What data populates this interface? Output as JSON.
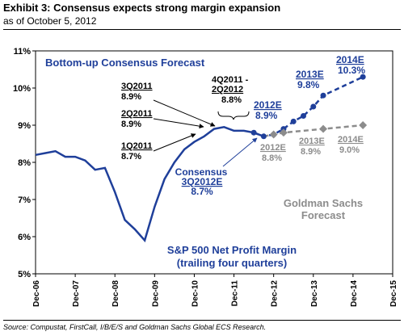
{
  "header": {
    "title": "Exhibit 3: Consensus expects strong margin expansion",
    "subtitle": "as of October 5, 2012"
  },
  "source": "Source: Compustat, FirstCall, I/B/E/S and Goldman Sachs Global ECS Research.",
  "chart_data": {
    "type": "line",
    "x_ticks": [
      "Dec-06",
      "Dec-07",
      "Dec-08",
      "Dec-09",
      "Dec-10",
      "Dec-11",
      "Dec-12",
      "Dec-13",
      "Dec-14",
      "Dec-15"
    ],
    "y_ticks": [
      "5%",
      "6%",
      "7%",
      "8%",
      "9%",
      "10%",
      "11%"
    ],
    "ylim": [
      5,
      11
    ],
    "grid": false,
    "colors": {
      "actual": "#1f3f9a",
      "consensus": "#1f3f9a",
      "gs": "#8c8c8c"
    },
    "series": [
      {
        "key": "actual",
        "style": "solid",
        "points": [
          [
            2006.75,
            8.2
          ],
          [
            2007.0,
            8.25
          ],
          [
            2007.25,
            8.3
          ],
          [
            2007.5,
            8.15
          ],
          [
            2007.75,
            8.15
          ],
          [
            2008.0,
            8.05
          ],
          [
            2008.25,
            7.8
          ],
          [
            2008.5,
            7.85
          ],
          [
            2008.75,
            7.2
          ],
          [
            2009.0,
            6.45
          ],
          [
            2009.25,
            6.2
          ],
          [
            2009.5,
            5.9
          ],
          [
            2009.75,
            6.8
          ],
          [
            2010.0,
            7.55
          ],
          [
            2010.25,
            8.0
          ],
          [
            2010.5,
            8.35
          ],
          [
            2010.75,
            8.55
          ],
          [
            2011.0,
            8.7
          ],
          [
            2011.25,
            8.9
          ],
          [
            2011.5,
            8.95
          ],
          [
            2011.75,
            8.85
          ],
          [
            2012.0,
            8.85
          ],
          [
            2012.25,
            8.8
          ],
          [
            2012.5,
            8.7
          ]
        ]
      },
      {
        "key": "consensus",
        "style": "dashed",
        "points": [
          [
            2012.25,
            8.8
          ],
          [
            2012.5,
            8.7
          ],
          [
            2012.75,
            8.75
          ],
          [
            2013.0,
            8.9
          ],
          [
            2013.25,
            9.1
          ],
          [
            2013.5,
            9.25
          ],
          [
            2013.75,
            9.5
          ],
          [
            2014.0,
            9.8
          ],
          [
            2015.0,
            10.3
          ]
        ]
      },
      {
        "key": "gs",
        "style": "dashed",
        "points": [
          [
            2012.5,
            8.7
          ],
          [
            2012.75,
            8.75
          ],
          [
            2013.0,
            8.8
          ],
          [
            2014.0,
            8.9
          ],
          [
            2015.0,
            9.0
          ]
        ]
      }
    ],
    "annotations": {
      "consensus_title": "Bottom-up Consensus Forecast",
      "q3_2011_label": "3Q2011",
      "q3_2011_value": "8.9%",
      "q2_2011_label": "2Q2011",
      "q2_2011_value": "8.9%",
      "q1_2011_label": "1Q2011",
      "q1_2011_value": "8.7%",
      "q4_2011_label1": "4Q2011 -",
      "q4_2011_label2": "2Q2012",
      "q4_2011_value": "8.8%",
      "cons_2012_label": "2012E",
      "cons_2012_value": "8.9%",
      "cons_2013_label": "2013E",
      "cons_2013_value": "9.8%",
      "cons_2014_label": "2014E",
      "cons_2014_value": "10.3%",
      "gs_2012_label": "2012E",
      "gs_2012_value": "8.8%",
      "gs_2013_label": "2013E",
      "gs_2013_value": "8.9%",
      "gs_2014_label": "2014E",
      "gs_2014_value": "9.0%",
      "consensus_q3_line1": "Consensus",
      "consensus_q3_line2": "3Q2012E",
      "consensus_q3_value": "8.7%",
      "gs_line1": "Goldman Sachs",
      "gs_line2": "Forecast",
      "metric_line1": "S&P 500 Net Profit  Margin",
      "metric_line2": "(trailing four quarters)"
    }
  }
}
